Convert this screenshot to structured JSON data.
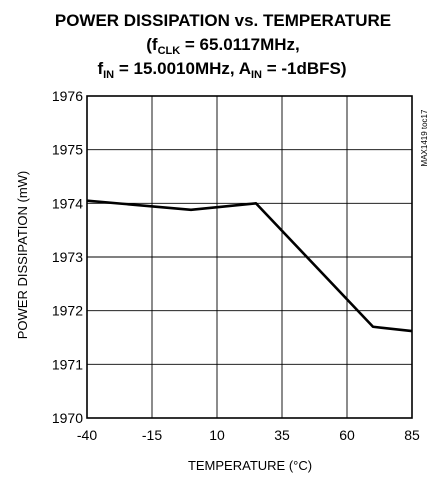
{
  "chart_data": {
    "type": "line",
    "title": {
      "line1": "POWER DISSIPATION vs. TEMPERATURE",
      "line2_prefix": "(f",
      "line2_sub": "CLK",
      "line2_rest": " = 65.0117MHz,",
      "line3_f": "f",
      "line3_fsub": "IN",
      "line3_mid": " = 15.0010MHz, A",
      "line3_asub": "IN",
      "line3_rest": " = -1dBFS)"
    },
    "xlabel": "TEMPERATURE (°C)",
    "ylabel": "POWER DISSIPATION (mW)",
    "figure_code": "MAX1419 toc17",
    "xlim": [
      -40,
      85
    ],
    "ylim": [
      1970,
      1976
    ],
    "xticks": [
      -40,
      -15,
      10,
      35,
      60,
      85
    ],
    "yticks": [
      1970,
      1971,
      1972,
      1973,
      1974,
      1975,
      1976
    ],
    "grid": true,
    "series": [
      {
        "x": [
          -40,
          0,
          25,
          70,
          85
        ],
        "y": [
          1974.05,
          1973.88,
          1974.0,
          1971.7,
          1971.62
        ]
      }
    ]
  }
}
